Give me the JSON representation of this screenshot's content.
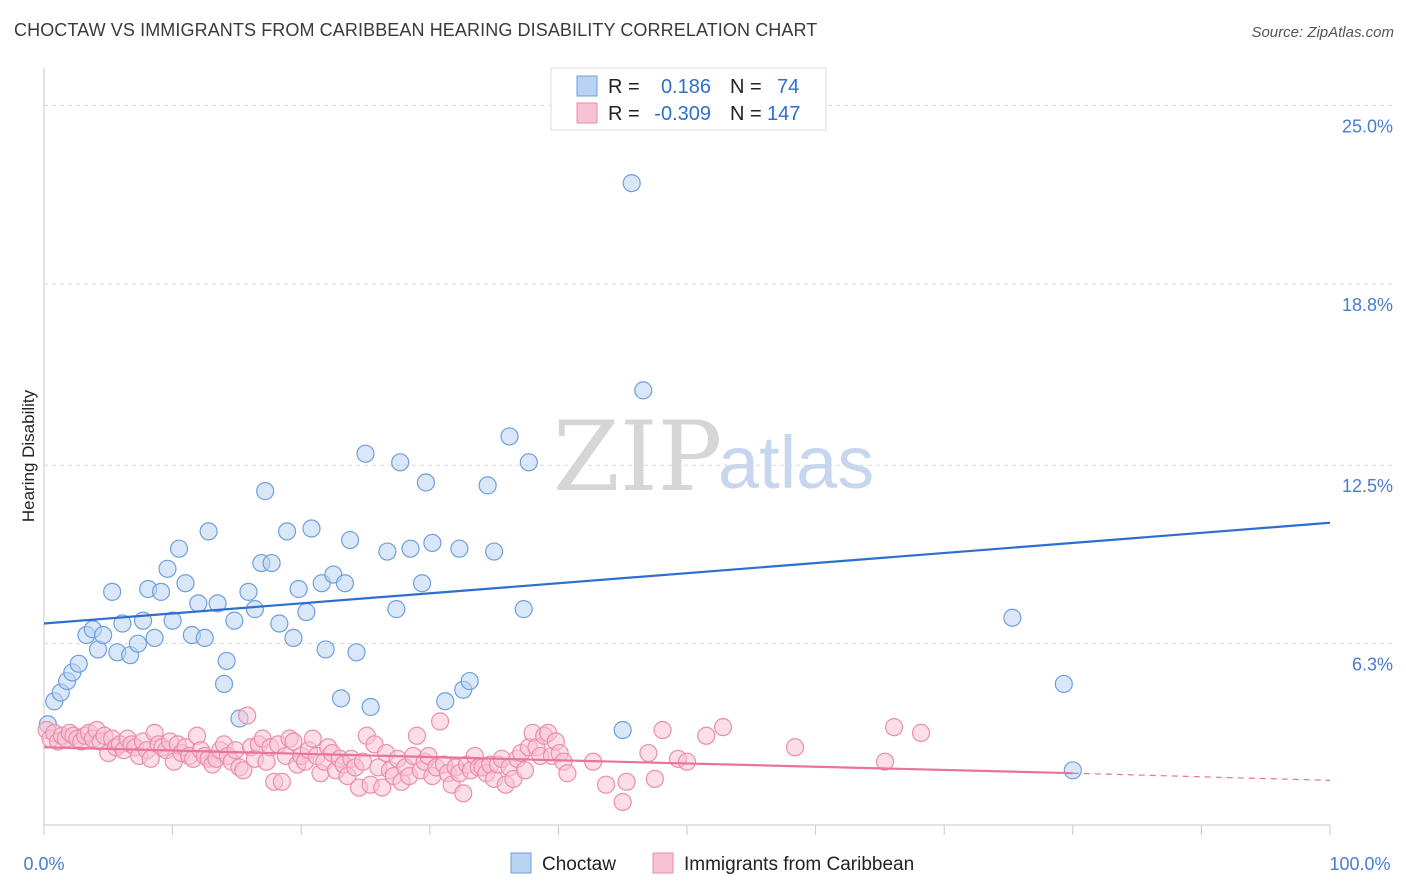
{
  "header": {
    "title": "CHOCTAW VS IMMIGRANTS FROM CARIBBEAN HEARING DISABILITY CORRELATION CHART",
    "source": "Source: ZipAtlas.com"
  },
  "watermark": {
    "part1": "ZIP",
    "part2": "atlas"
  },
  "legend_top": {
    "rows": [
      {
        "r_label": "R =",
        "r_value": "0.186",
        "n_label": "N =",
        "n_value": "74"
      },
      {
        "r_label": "R =",
        "r_value": "-0.309",
        "n_label": "N =",
        "n_value": "147"
      }
    ]
  },
  "legend_bottom": {
    "series1": "Choctaw",
    "series2": "Immigrants from Caribbean"
  },
  "colors": {
    "choctaw_fill": "#b9d3f3",
    "choctaw_stroke": "#6f9fde",
    "choctaw_line": "#2c6fd0",
    "carib_fill": "#f7c2d2",
    "carib_stroke": "#ea8eab",
    "carib_line": "#e8739b",
    "grid": "#d9d9d9",
    "tick_label": "#4a7bd0"
  },
  "chart_data": {
    "type": "scatter",
    "title": "CHOCTAW VS IMMIGRANTS FROM CARIBBEAN HEARING DISABILITY CORRELATION CHART",
    "xlabel": "",
    "ylabel": "Hearing Disability",
    "xlim": [
      0,
      100
    ],
    "ylim": [
      0,
      26.3
    ],
    "x_tick_labels": [
      "0.0%",
      "100.0%"
    ],
    "y_ticks": [
      6.3,
      12.5,
      18.8,
      25.0
    ],
    "y_tick_labels": [
      "6.3%",
      "12.5%",
      "18.8%",
      "25.0%"
    ],
    "grid": true,
    "series": [
      {
        "name": "Choctaw",
        "r": 0.186,
        "n": 74,
        "trend": {
          "x": [
            0,
            100
          ],
          "y": [
            7.0,
            10.5
          ]
        },
        "points": [
          [
            0.3,
            3.5
          ],
          [
            0.8,
            4.3
          ],
          [
            1.3,
            4.6
          ],
          [
            1.8,
            5.0
          ],
          [
            2.2,
            5.3
          ],
          [
            2.7,
            5.6
          ],
          [
            3.3,
            6.6
          ],
          [
            3.8,
            6.8
          ],
          [
            4.2,
            6.1
          ],
          [
            4.6,
            6.6
          ],
          [
            5.3,
            8.1
          ],
          [
            5.7,
            6.0
          ],
          [
            6.1,
            7.0
          ],
          [
            6.7,
            5.9
          ],
          [
            7.3,
            6.3
          ],
          [
            7.7,
            7.1
          ],
          [
            8.1,
            8.2
          ],
          [
            8.6,
            6.5
          ],
          [
            9.1,
            8.1
          ],
          [
            9.6,
            8.9
          ],
          [
            10.0,
            7.1
          ],
          [
            10.5,
            9.6
          ],
          [
            11.0,
            8.4
          ],
          [
            11.5,
            6.6
          ],
          [
            12.0,
            7.7
          ],
          [
            12.5,
            6.5
          ],
          [
            12.8,
            10.2
          ],
          [
            13.5,
            7.7
          ],
          [
            14.0,
            4.9
          ],
          [
            14.2,
            5.7
          ],
          [
            14.8,
            7.1
          ],
          [
            15.2,
            3.7
          ],
          [
            15.9,
            8.1
          ],
          [
            16.4,
            7.5
          ],
          [
            16.9,
            9.1
          ],
          [
            17.2,
            11.6
          ],
          [
            17.7,
            9.1
          ],
          [
            18.3,
            7.0
          ],
          [
            18.9,
            10.2
          ],
          [
            19.4,
            6.5
          ],
          [
            19.8,
            8.2
          ],
          [
            20.4,
            7.4
          ],
          [
            20.8,
            10.3
          ],
          [
            21.6,
            8.4
          ],
          [
            21.9,
            6.1
          ],
          [
            22.5,
            8.7
          ],
          [
            23.1,
            4.4
          ],
          [
            23.4,
            8.4
          ],
          [
            23.8,
            9.9
          ],
          [
            24.3,
            6.0
          ],
          [
            25.0,
            12.9
          ],
          [
            25.4,
            4.1
          ],
          [
            26.7,
            9.5
          ],
          [
            27.4,
            7.5
          ],
          [
            27.7,
            12.6
          ],
          [
            28.5,
            9.6
          ],
          [
            29.4,
            8.4
          ],
          [
            29.7,
            11.9
          ],
          [
            30.2,
            9.8
          ],
          [
            31.2,
            4.3
          ],
          [
            32.3,
            9.6
          ],
          [
            32.6,
            4.7
          ],
          [
            33.1,
            5.0
          ],
          [
            34.5,
            11.8
          ],
          [
            35.0,
            9.5
          ],
          [
            36.2,
            13.5
          ],
          [
            37.3,
            7.5
          ],
          [
            37.7,
            12.6
          ],
          [
            45.7,
            22.3
          ],
          [
            45.0,
            3.3
          ],
          [
            46.6,
            15.1
          ],
          [
            75.3,
            7.2
          ],
          [
            79.3,
            4.9
          ],
          [
            80.0,
            1.9
          ]
        ]
      },
      {
        "name": "Immigrants from Caribbean",
        "r": -0.309,
        "n": 147,
        "trend": {
          "x": [
            0,
            80
          ],
          "y": [
            2.7,
            1.8
          ]
        },
        "trend_dashed": {
          "x": [
            80,
            100
          ],
          "y": [
            1.8,
            1.55
          ]
        },
        "points": [
          [
            0.2,
            3.3
          ],
          [
            0.5,
            3.0
          ],
          [
            0.8,
            3.2
          ],
          [
            1.1,
            2.9
          ],
          [
            1.4,
            3.1
          ],
          [
            1.7,
            3.0
          ],
          [
            2.0,
            3.2
          ],
          [
            2.3,
            3.1
          ],
          [
            2.6,
            3.0
          ],
          [
            2.9,
            2.9
          ],
          [
            3.2,
            3.1
          ],
          [
            3.5,
            3.2
          ],
          [
            3.8,
            3.0
          ],
          [
            4.1,
            3.3
          ],
          [
            4.4,
            2.9
          ],
          [
            4.7,
            3.1
          ],
          [
            5.0,
            2.5
          ],
          [
            5.3,
            3.0
          ],
          [
            5.6,
            2.7
          ],
          [
            5.9,
            2.8
          ],
          [
            6.2,
            2.6
          ],
          [
            6.5,
            3.0
          ],
          [
            6.8,
            2.8
          ],
          [
            7.1,
            2.7
          ],
          [
            7.4,
            2.4
          ],
          [
            7.7,
            2.9
          ],
          [
            8.0,
            2.6
          ],
          [
            8.3,
            2.3
          ],
          [
            8.6,
            3.2
          ],
          [
            8.9,
            2.8
          ],
          [
            9.2,
            2.7
          ],
          [
            9.5,
            2.6
          ],
          [
            9.8,
            2.9
          ],
          [
            10.1,
            2.2
          ],
          [
            10.4,
            2.8
          ],
          [
            10.7,
            2.5
          ],
          [
            11.0,
            2.7
          ],
          [
            11.3,
            2.4
          ],
          [
            11.6,
            2.3
          ],
          [
            11.9,
            3.1
          ],
          [
            12.2,
            2.6
          ],
          [
            12.5,
            2.4
          ],
          [
            12.8,
            2.3
          ],
          [
            13.1,
            2.1
          ],
          [
            13.4,
            2.3
          ],
          [
            13.7,
            2.6
          ],
          [
            14.0,
            2.8
          ],
          [
            14.3,
            2.4
          ],
          [
            14.6,
            2.2
          ],
          [
            14.9,
            2.6
          ],
          [
            15.2,
            2.0
          ],
          [
            15.5,
            1.9
          ],
          [
            15.8,
            3.8
          ],
          [
            16.1,
            2.7
          ],
          [
            16.4,
            2.3
          ],
          [
            16.7,
            2.8
          ],
          [
            17.0,
            3.0
          ],
          [
            17.3,
            2.2
          ],
          [
            17.6,
            2.7
          ],
          [
            17.9,
            1.5
          ],
          [
            18.2,
            2.8
          ],
          [
            18.5,
            1.5
          ],
          [
            18.8,
            2.4
          ],
          [
            19.1,
            3.0
          ],
          [
            19.4,
            2.9
          ],
          [
            19.7,
            2.1
          ],
          [
            20.0,
            2.4
          ],
          [
            20.3,
            2.2
          ],
          [
            20.6,
            2.6
          ],
          [
            20.9,
            3.0
          ],
          [
            21.2,
            2.4
          ],
          [
            21.5,
            1.8
          ],
          [
            21.8,
            2.2
          ],
          [
            22.1,
            2.7
          ],
          [
            22.4,
            2.5
          ],
          [
            22.7,
            1.9
          ],
          [
            23.0,
            2.3
          ],
          [
            23.3,
            2.1
          ],
          [
            23.6,
            1.7
          ],
          [
            23.9,
            2.3
          ],
          [
            24.2,
            2.0
          ],
          [
            24.5,
            1.3
          ],
          [
            24.8,
            2.2
          ],
          [
            25.1,
            3.1
          ],
          [
            25.4,
            1.4
          ],
          [
            25.7,
            2.8
          ],
          [
            26.0,
            2.0
          ],
          [
            26.3,
            1.3
          ],
          [
            26.6,
            2.5
          ],
          [
            26.9,
            1.9
          ],
          [
            27.2,
            1.7
          ],
          [
            27.5,
            2.3
          ],
          [
            27.8,
            1.5
          ],
          [
            28.1,
            2.0
          ],
          [
            28.4,
            1.7
          ],
          [
            28.7,
            2.4
          ],
          [
            29.0,
            3.1
          ],
          [
            29.3,
            1.9
          ],
          [
            29.6,
            2.2
          ],
          [
            29.9,
            2.4
          ],
          [
            30.2,
            1.7
          ],
          [
            30.5,
            2.0
          ],
          [
            30.8,
            3.6
          ],
          [
            31.1,
            2.1
          ],
          [
            31.4,
            1.8
          ],
          [
            31.7,
            1.4
          ],
          [
            32.0,
            2.0
          ],
          [
            32.3,
            1.8
          ],
          [
            32.6,
            1.1
          ],
          [
            32.9,
            2.1
          ],
          [
            33.2,
            1.9
          ],
          [
            33.5,
            2.4
          ],
          [
            33.8,
            2.0
          ],
          [
            34.1,
            2.0
          ],
          [
            34.4,
            1.8
          ],
          [
            34.7,
            2.1
          ],
          [
            35.0,
            1.6
          ],
          [
            35.3,
            2.1
          ],
          [
            35.6,
            2.3
          ],
          [
            35.9,
            1.4
          ],
          [
            36.2,
            2.0
          ],
          [
            36.5,
            1.6
          ],
          [
            36.8,
            2.3
          ],
          [
            37.1,
            2.5
          ],
          [
            37.4,
            1.9
          ],
          [
            37.7,
            2.7
          ],
          [
            38.0,
            3.2
          ],
          [
            38.3,
            2.7
          ],
          [
            38.6,
            2.4
          ],
          [
            38.9,
            3.1
          ],
          [
            39.2,
            3.2
          ],
          [
            39.5,
            2.4
          ],
          [
            39.8,
            2.9
          ],
          [
            40.1,
            2.5
          ],
          [
            40.4,
            2.2
          ],
          [
            40.7,
            1.8
          ],
          [
            42.7,
            2.2
          ],
          [
            43.7,
            1.4
          ],
          [
            45.3,
            1.5
          ],
          [
            47.0,
            2.5
          ],
          [
            47.5,
            1.6
          ],
          [
            48.1,
            3.3
          ],
          [
            49.3,
            2.3
          ],
          [
            50.0,
            2.2
          ],
          [
            51.5,
            3.1
          ],
          [
            52.8,
            3.4
          ],
          [
            58.4,
            2.7
          ],
          [
            65.4,
            2.2
          ],
          [
            66.1,
            3.4
          ],
          [
            68.2,
            3.2
          ],
          [
            45.0,
            0.8
          ]
        ]
      }
    ]
  }
}
